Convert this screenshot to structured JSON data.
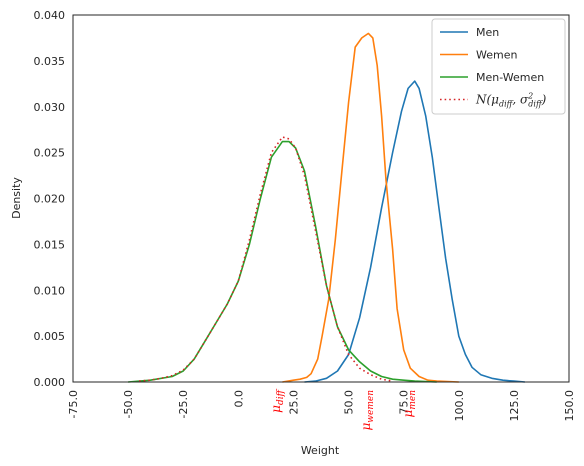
{
  "chart_data": {
    "type": "line",
    "title": "",
    "xlabel": "Weight",
    "ylabel": "Density",
    "xlim": [
      -75,
      150
    ],
    "ylim": [
      0,
      0.04
    ],
    "x_ticks": [
      "-75.0",
      "-50.0",
      "-25.0",
      "0.0",
      "25.0",
      "50.0",
      "75.0",
      "100.0",
      "125.0",
      "150.0"
    ],
    "y_ticks": [
      "0.000",
      "0.005",
      "0.010",
      "0.015",
      "0.020",
      "0.025",
      "0.030",
      "0.035",
      "0.040"
    ],
    "grid": false,
    "legend_position": "top-right",
    "series": [
      {
        "name": "Men",
        "color": "#1f77b4",
        "style": "solid",
        "points": [
          [
            30,
            0
          ],
          [
            35,
            0.0001
          ],
          [
            40,
            0.0004
          ],
          [
            45,
            0.0012
          ],
          [
            50,
            0.003
          ],
          [
            55,
            0.007
          ],
          [
            60,
            0.0125
          ],
          [
            65,
            0.019
          ],
          [
            70,
            0.025
          ],
          [
            74,
            0.0295
          ],
          [
            77,
            0.032
          ],
          [
            80,
            0.0328
          ],
          [
            82,
            0.032
          ],
          [
            85,
            0.029
          ],
          [
            88,
            0.0245
          ],
          [
            91,
            0.019
          ],
          [
            94,
            0.0135
          ],
          [
            97,
            0.009
          ],
          [
            100,
            0.005
          ],
          [
            103,
            0.003
          ],
          [
            106,
            0.0016
          ],
          [
            110,
            0.0008
          ],
          [
            115,
            0.0004
          ],
          [
            120,
            0.0002
          ],
          [
            125,
            0.0001
          ],
          [
            130,
            0
          ]
        ]
      },
      {
        "name": "Wemen",
        "color": "#ff7f0e",
        "style": "solid",
        "points": [
          [
            20,
            0
          ],
          [
            25,
            0.0002
          ],
          [
            28,
            0.0003
          ],
          [
            31,
            0.0005
          ],
          [
            33,
            0.0009
          ],
          [
            36,
            0.0025
          ],
          [
            38,
            0.005
          ],
          [
            41,
            0.009
          ],
          [
            44,
            0.0155
          ],
          [
            47,
            0.023
          ],
          [
            50,
            0.0305
          ],
          [
            53,
            0.0365
          ],
          [
            56,
            0.0375
          ],
          [
            59,
            0.038
          ],
          [
            61,
            0.0375
          ],
          [
            63,
            0.0345
          ],
          [
            65,
            0.029
          ],
          [
            67,
            0.022
          ],
          [
            70,
            0.0145
          ],
          [
            72,
            0.008
          ],
          [
            75,
            0.0035
          ],
          [
            78,
            0.0015
          ],
          [
            82,
            0.0006
          ],
          [
            86,
            0.0002
          ],
          [
            90,
            0.0001
          ],
          [
            100,
            0
          ]
        ]
      },
      {
        "name": "Men-Wemen",
        "color": "#2ca02c",
        "style": "solid",
        "points": [
          [
            -50,
            0
          ],
          [
            -40,
            0.0002
          ],
          [
            -30,
            0.0006
          ],
          [
            -25,
            0.0012
          ],
          [
            -20,
            0.0025
          ],
          [
            -15,
            0.0045
          ],
          [
            -10,
            0.0065
          ],
          [
            -5,
            0.0085
          ],
          [
            0,
            0.011
          ],
          [
            5,
            0.015
          ],
          [
            10,
            0.02
          ],
          [
            15,
            0.0245
          ],
          [
            20,
            0.0262
          ],
          [
            23,
            0.0262
          ],
          [
            26,
            0.0255
          ],
          [
            30,
            0.023
          ],
          [
            35,
            0.017
          ],
          [
            40,
            0.0105
          ],
          [
            45,
            0.006
          ],
          [
            50,
            0.0035
          ],
          [
            55,
            0.0022
          ],
          [
            60,
            0.0012
          ],
          [
            65,
            0.0006
          ],
          [
            70,
            0.0003
          ],
          [
            75,
            0.0002
          ],
          [
            80,
            0.0001
          ],
          [
            90,
            0
          ]
        ]
      },
      {
        "name": "N(μ_diff, σ²_diff)",
        "color": "#d62728",
        "style": "dotted",
        "points": [
          [
            -45,
            0.0001
          ],
          [
            -40,
            0.0002
          ],
          [
            -35,
            0.0004
          ],
          [
            -30,
            0.0007
          ],
          [
            -25,
            0.0013
          ],
          [
            -20,
            0.0025
          ],
          [
            -15,
            0.0045
          ],
          [
            -10,
            0.0065
          ],
          [
            -5,
            0.0085
          ],
          [
            0,
            0.011
          ],
          [
            5,
            0.0155
          ],
          [
            10,
            0.0205
          ],
          [
            15,
            0.025
          ],
          [
            20,
            0.0267
          ],
          [
            23,
            0.0265
          ],
          [
            26,
            0.0255
          ],
          [
            30,
            0.0225
          ],
          [
            35,
            0.0165
          ],
          [
            40,
            0.0105
          ],
          [
            45,
            0.006
          ],
          [
            50,
            0.003
          ],
          [
            55,
            0.0015
          ],
          [
            60,
            0.0008
          ],
          [
            65,
            0.0003
          ],
          [
            70,
            0.0001
          ]
        ]
      }
    ],
    "legend_entries": [
      {
        "label": "Men",
        "color": "#1f77b4",
        "style": "solid"
      },
      {
        "label": "Wemen",
        "color": "#ff7f0e",
        "style": "solid"
      },
      {
        "label": "Men-Wemen",
        "color": "#2ca02c",
        "style": "solid"
      },
      {
        "label": "N(μ_diff, σ²_diff)",
        "color": "#d62728",
        "style": "dotted"
      }
    ],
    "annotations": [
      {
        "label": "μ_diff",
        "x": 17,
        "color": "#ff0000"
      },
      {
        "label": "μ_wemen",
        "x": 58,
        "color": "#ff0000"
      },
      {
        "label": "μ_men",
        "x": 77,
        "color": "#ff0000"
      }
    ]
  }
}
